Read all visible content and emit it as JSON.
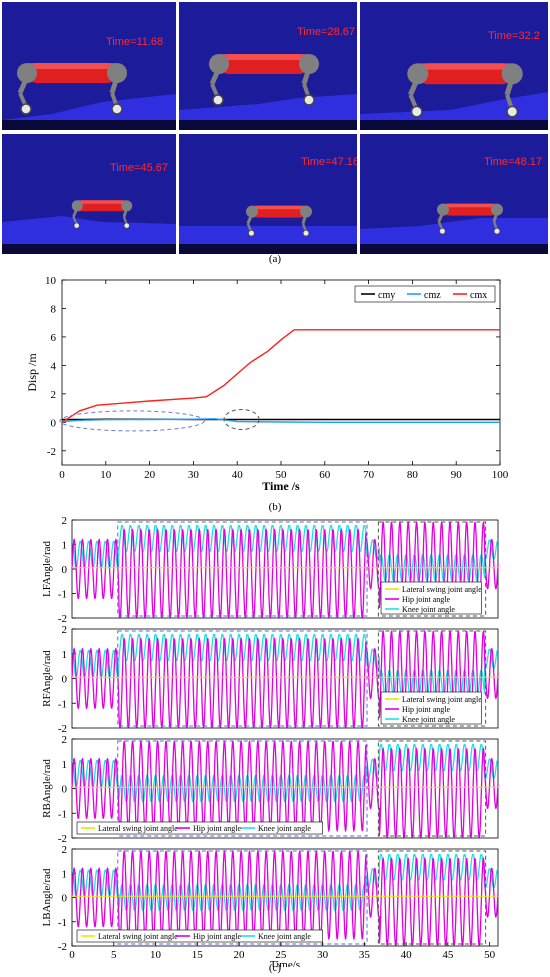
{
  "panel_a": {
    "label": "(a)",
    "frames": [
      {
        "time_label": "Time=11.68"
      },
      {
        "time_label": "Time=28.67"
      },
      {
        "time_label": "Time=32.2"
      },
      {
        "time_label": "Time=45.67"
      },
      {
        "time_label": "Time=47.16"
      },
      {
        "time_label": "Time=48.17"
      }
    ],
    "colors": {
      "sky": "#1c1c9a",
      "ground": "#2f2fe0",
      "body": "#e02020",
      "legs": "#808080"
    }
  },
  "panel_b_label": "(b)",
  "panel_c_label": "(c)",
  "chart_data": [
    {
      "type": "line",
      "id": "disp",
      "xlabel": "Time /s",
      "ylabel": "Disp /m",
      "xlim": [
        0,
        100
      ],
      "ylim": [
        -3,
        10
      ],
      "xticks": [
        0,
        10,
        20,
        30,
        40,
        50,
        60,
        70,
        80,
        90,
        100
      ],
      "yticks": [
        -2,
        0,
        2,
        4,
        6,
        8,
        10
      ],
      "legend_position": "top-right",
      "series": [
        {
          "name": "cmy",
          "color": "#000000",
          "x": [
            0,
            2,
            5,
            10,
            20,
            30,
            40,
            50,
            60,
            80,
            100
          ],
          "y": [
            0.2,
            0.2,
            0.2,
            0.22,
            0.22,
            0.2,
            0.2,
            0.2,
            0.2,
            0.2,
            0.2
          ]
        },
        {
          "name": "cmz",
          "color": "#1ea0ff",
          "x": [
            0,
            2,
            5,
            10,
            20,
            30,
            35,
            40,
            50,
            60,
            80,
            100
          ],
          "y": [
            0.05,
            0.1,
            0.15,
            0.18,
            0.2,
            0.22,
            0.25,
            0.05,
            0.02,
            0.0,
            0.0,
            0.0
          ]
        },
        {
          "name": "cmx",
          "color": "#ff2020",
          "x": [
            0,
            2,
            4,
            6,
            8,
            12,
            20,
            30,
            33,
            35,
            37,
            40,
            43,
            47,
            50,
            53,
            60,
            80,
            100
          ],
          "y": [
            0,
            0.4,
            0.8,
            1.0,
            1.2,
            1.3,
            1.5,
            1.7,
            1.8,
            2.2,
            2.6,
            3.4,
            4.2,
            5.0,
            5.8,
            6.5,
            6.5,
            6.5,
            6.5
          ]
        }
      ]
    },
    {
      "type": "line",
      "id": "LF",
      "ylabel": "LFAngle/rad",
      "xlim": [
        0,
        51
      ],
      "ylim": [
        -2,
        2
      ],
      "yticks": [
        -2,
        -1,
        0,
        1,
        2
      ],
      "legend_position": "bottom-right",
      "legend_layout": "vertical",
      "phases": [
        {
          "x0": 0,
          "x1": 5.6,
          "hip_center": 0,
          "hip_amp": 1.2,
          "knee_center": 0.6,
          "knee_amp": 0.55,
          "freq": 1.0
        },
        {
          "x0": 5.6,
          "x1": 35.2,
          "hip_center": -0.2,
          "hip_amp": 1.8,
          "knee_center": 1.25,
          "knee_amp": 0.55,
          "freq": 1.0
        },
        {
          "x0": 35.2,
          "x1": 36.8,
          "hip_center": 0.2,
          "hip_amp": 1.0,
          "knee_center": 0.8,
          "knee_amp": 0.4,
          "freq": 1.0
        },
        {
          "x0": 36.8,
          "x1": 49.4,
          "hip_center": 0.1,
          "hip_amp": 1.8,
          "knee_center": 0.05,
          "knee_amp": 0.55,
          "freq": 1.0
        },
        {
          "x0": 49.4,
          "x1": 51,
          "hip_center": 0.2,
          "hip_amp": 1.0,
          "knee_center": 0.8,
          "knee_amp": 0.4,
          "freq": 1.0
        }
      ],
      "lateral_value": 0.05,
      "series": [
        {
          "name": "Lateral swing joint angle",
          "color": "#e8e800"
        },
        {
          "name": "Hip joint angle",
          "color": "#e000e0"
        },
        {
          "name": "Knee joint angle",
          "color": "#20e0e0"
        }
      ]
    },
    {
      "type": "line",
      "id": "RF",
      "ylabel": "RFAngle/rad",
      "xlim": [
        0,
        51
      ],
      "ylim": [
        -2,
        2
      ],
      "yticks": [
        -2,
        -1,
        0,
        1,
        2
      ],
      "legend_position": "bottom-right",
      "legend_layout": "vertical",
      "phases": [
        {
          "x0": 0,
          "x1": 5.6,
          "hip_center": 0,
          "hip_amp": 1.2,
          "knee_center": 0.6,
          "knee_amp": 0.55,
          "freq": 1.0
        },
        {
          "x0": 5.6,
          "x1": 35.2,
          "hip_center": -0.2,
          "hip_amp": 1.8,
          "knee_center": 1.25,
          "knee_amp": 0.55,
          "freq": 1.0
        },
        {
          "x0": 35.2,
          "x1": 36.8,
          "hip_center": 0.2,
          "hip_amp": 1.0,
          "knee_center": 0.8,
          "knee_amp": 0.4,
          "freq": 1.0
        },
        {
          "x0": 36.8,
          "x1": 49.4,
          "hip_center": 0.1,
          "hip_amp": 1.8,
          "knee_center": -0.2,
          "knee_amp": 0.55,
          "freq": 1.0
        },
        {
          "x0": 49.4,
          "x1": 51,
          "hip_center": 0.2,
          "hip_amp": 1.0,
          "knee_center": 0.8,
          "knee_amp": 0.4,
          "freq": 1.0
        }
      ],
      "lateral_value": 0.05,
      "series": [
        {
          "name": "Lateral swing joint angle",
          "color": "#e8e800"
        },
        {
          "name": "Hip joint angle",
          "color": "#e000e0"
        },
        {
          "name": "Knee joint angle",
          "color": "#20e0e0"
        }
      ]
    },
    {
      "type": "line",
      "id": "RB",
      "ylabel": "RBAngle/rad",
      "xlim": [
        0,
        51
      ],
      "ylim": [
        -2,
        2
      ],
      "yticks": [
        -2,
        -1,
        0,
        1,
        2
      ],
      "legend_position": "bottom",
      "legend_layout": "horizontal",
      "phases": [
        {
          "x0": 0,
          "x1": 5.6,
          "hip_center": 0,
          "hip_amp": 1.2,
          "knee_center": 0.6,
          "knee_amp": 0.55,
          "freq": 1.0
        },
        {
          "x0": 5.6,
          "x1": 35.2,
          "hip_center": 0.1,
          "hip_amp": 1.8,
          "knee_center": 0.0,
          "knee_amp": 0.55,
          "freq": 1.0
        },
        {
          "x0": 35.2,
          "x1": 36.8,
          "hip_center": 0.2,
          "hip_amp": 1.0,
          "knee_center": 0.8,
          "knee_amp": 0.4,
          "freq": 1.0
        },
        {
          "x0": 36.8,
          "x1": 49.4,
          "hip_center": -0.2,
          "hip_amp": 1.8,
          "knee_center": 1.25,
          "knee_amp": 0.55,
          "freq": 1.0
        },
        {
          "x0": 49.4,
          "x1": 51,
          "hip_center": 0.2,
          "hip_amp": 1.0,
          "knee_center": 0.8,
          "knee_amp": 0.4,
          "freq": 1.0
        }
      ],
      "lateral_value": 0.05,
      "series": [
        {
          "name": "Lateral swing joint angle",
          "color": "#e8e800"
        },
        {
          "name": "Hip joint angle",
          "color": "#e000e0"
        },
        {
          "name": "Knee joint angle",
          "color": "#20e0e0"
        }
      ]
    },
    {
      "type": "line",
      "id": "LB",
      "ylabel": "LBAngle/rad",
      "xlabel": "Time/s",
      "xlim": [
        0,
        51
      ],
      "ylim": [
        -2,
        2
      ],
      "yticks": [
        -2,
        -1,
        0,
        1,
        2
      ],
      "xticks": [
        0,
        5,
        10,
        15,
        20,
        25,
        30,
        35,
        40,
        45,
        50
      ],
      "legend_position": "bottom",
      "legend_layout": "horizontal",
      "phases": [
        {
          "x0": 0,
          "x1": 5.6,
          "hip_center": 0,
          "hip_amp": 1.2,
          "knee_center": 0.6,
          "knee_amp": 0.55,
          "freq": 1.0
        },
        {
          "x0": 5.6,
          "x1": 35.2,
          "hip_center": 0.1,
          "hip_amp": 1.8,
          "knee_center": 0.0,
          "knee_amp": 0.55,
          "freq": 1.0
        },
        {
          "x0": 35.2,
          "x1": 36.8,
          "hip_center": 0.2,
          "hip_amp": 1.0,
          "knee_center": 0.8,
          "knee_amp": 0.4,
          "freq": 1.0
        },
        {
          "x0": 36.8,
          "x1": 49.4,
          "hip_center": -0.2,
          "hip_amp": 1.8,
          "knee_center": 1.25,
          "knee_amp": 0.55,
          "freq": 1.0
        },
        {
          "x0": 49.4,
          "x1": 51,
          "hip_center": 0.2,
          "hip_amp": 1.0,
          "knee_center": 0.8,
          "knee_amp": 0.4,
          "freq": 1.0
        }
      ],
      "lateral_value": 0.05,
      "series": [
        {
          "name": "Lateral swing joint angle",
          "color": "#e8e800"
        },
        {
          "name": "Hip joint angle",
          "color": "#e000e0"
        },
        {
          "name": "Knee joint angle",
          "color": "#20e0e0"
        }
      ]
    }
  ]
}
